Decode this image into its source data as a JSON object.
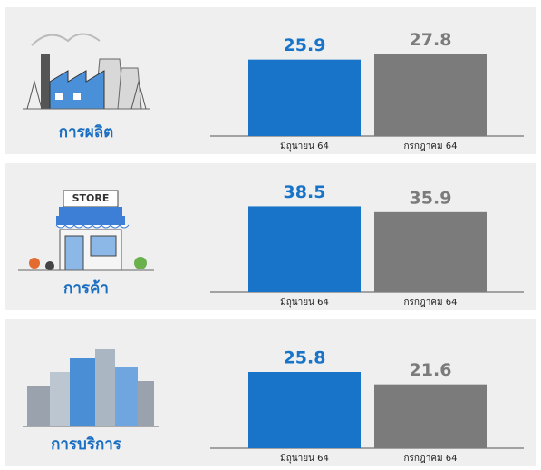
{
  "chart_data": [
    {
      "type": "bar",
      "title": "การผลิต",
      "categories": [
        "มิถุนายน 64",
        "กรกฎาคม 64"
      ],
      "values": [
        25.9,
        27.8
      ],
      "colors": [
        "#1874c8",
        "#7b7b7b"
      ],
      "ylim": [
        0,
        43
      ]
    },
    {
      "type": "bar",
      "title": "การค้า",
      "categories": [
        "มิถุนายน 64",
        "กรกฎาคม 64"
      ],
      "values": [
        38.5,
        35.9
      ],
      "colors": [
        "#1874c8",
        "#7b7b7b"
      ],
      "ylim": [
        0,
        57
      ]
    },
    {
      "type": "bar",
      "title": "การบริการ",
      "categories": [
        "มิถุนายน 64",
        "กรกฎาคม 64"
      ],
      "values": [
        25.8,
        21.6
      ],
      "colors": [
        "#1874c8",
        "#7b7b7b"
      ],
      "ylim": [
        0,
        43
      ]
    }
  ]
}
